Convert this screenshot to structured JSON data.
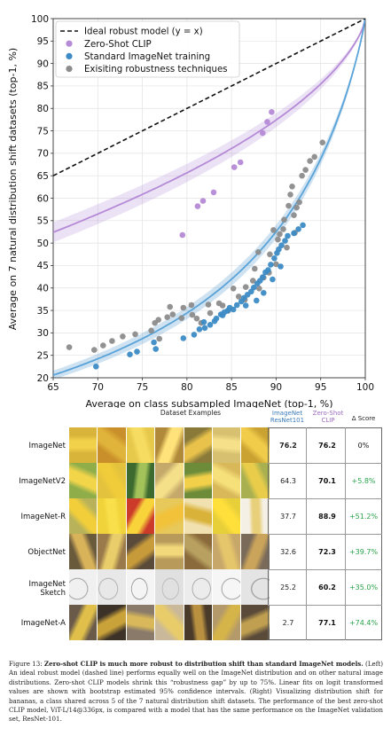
{
  "chart_data": {
    "type": "scatter",
    "title": "",
    "xlabel": "Average on class subsampled ImageNet (top-1, %)",
    "ylabel": "Average on 7 natural distribution shift datasets (top-1, %)",
    "xlim": [
      65,
      100
    ],
    "ylim": [
      20,
      100
    ],
    "xticks": [
      "65",
      "70",
      "75",
      "80",
      "85",
      "90",
      "95",
      "100"
    ],
    "yticks": [
      "20",
      "25",
      "30",
      "35",
      "40",
      "45",
      "50",
      "55",
      "60",
      "65",
      "70",
      "75",
      "80",
      "85",
      "90",
      "95",
      "100"
    ],
    "grid": true,
    "legend_position": "top-left",
    "legend": [
      {
        "label": "Ideal robust model (y = x)",
        "kind": "dashed-line",
        "color": "#111111"
      },
      {
        "label": "Zero-Shot CLIP",
        "kind": "point",
        "color": "#b58ad6"
      },
      {
        "label": "Standard ImageNet training",
        "kind": "point",
        "color": "#3d8bc6"
      },
      {
        "label": "Exisiting robustness techniques",
        "kind": "point",
        "color": "#8c8c8c"
      }
    ],
    "series": [
      {
        "name": "Zero-Shot CLIP",
        "color": "#b58ad6",
        "points": [
          [
            79.5,
            51.8
          ],
          [
            81.2,
            58.2
          ],
          [
            81.8,
            59.4
          ],
          [
            83.0,
            61.3
          ],
          [
            85.3,
            66.9
          ],
          [
            86.0,
            68.0
          ],
          [
            88.5,
            74.5
          ],
          [
            89.0,
            77.0
          ],
          [
            89.5,
            79.2
          ]
        ]
      },
      {
        "name": "Standard ImageNet training",
        "color": "#3d8bc6",
        "points": [
          [
            69.8,
            22.5
          ],
          [
            73.6,
            25.2
          ],
          [
            74.4,
            25.8
          ],
          [
            76.5,
            26.4
          ],
          [
            76.3,
            27.9
          ],
          [
            79.6,
            28.8
          ],
          [
            80.8,
            29.6
          ],
          [
            81.4,
            30.8
          ],
          [
            82.0,
            31.1
          ],
          [
            82.6,
            31.8
          ],
          [
            83.1,
            32.6
          ],
          [
            83.3,
            33.2
          ],
          [
            83.8,
            34.1
          ],
          [
            84.2,
            34.6
          ],
          [
            84.6,
            35.0
          ],
          [
            84.8,
            35.6
          ],
          [
            85.2,
            35.2
          ],
          [
            85.6,
            36.2
          ],
          [
            86.1,
            37.0
          ],
          [
            86.4,
            37.8
          ],
          [
            86.8,
            38.5
          ],
          [
            87.2,
            39.2
          ],
          [
            87.5,
            40.1
          ],
          [
            87.9,
            41.0
          ],
          [
            88.2,
            41.6
          ],
          [
            88.5,
            42.4
          ],
          [
            88.8,
            43.5
          ],
          [
            89.1,
            44.0
          ],
          [
            89.4,
            45.2
          ],
          [
            89.8,
            46.6
          ],
          [
            90.1,
            47.8
          ],
          [
            90.3,
            48.6
          ],
          [
            90.6,
            49.5
          ],
          [
            91.0,
            50.5
          ],
          [
            91.3,
            51.6
          ],
          [
            92.0,
            52.2
          ],
          [
            92.5,
            53.1
          ],
          [
            93.0,
            54.0
          ],
          [
            87.8,
            37.2
          ],
          [
            88.6,
            38.9
          ],
          [
            86.6,
            36.1
          ],
          [
            89.6,
            41.9
          ],
          [
            90.5,
            44.8
          ],
          [
            81.9,
            32.4
          ],
          [
            84.0,
            33.9
          ]
        ]
      },
      {
        "name": "Exisiting robustness techniques",
        "color": "#8c8c8c",
        "points": [
          [
            66.8,
            26.8
          ],
          [
            69.6,
            26.2
          ],
          [
            70.6,
            27.2
          ],
          [
            71.6,
            28.2
          ],
          [
            72.8,
            29.2
          ],
          [
            74.2,
            29.7
          ],
          [
            76.0,
            30.5
          ],
          [
            76.4,
            32.2
          ],
          [
            76.8,
            32.9
          ],
          [
            77.8,
            33.5
          ],
          [
            78.1,
            35.8
          ],
          [
            78.4,
            34.1
          ],
          [
            79.4,
            33.3
          ],
          [
            79.6,
            35.6
          ],
          [
            80.5,
            36.2
          ],
          [
            80.6,
            34.0
          ],
          [
            81.1,
            33.2
          ],
          [
            81.6,
            32.2
          ],
          [
            82.4,
            36.3
          ],
          [
            82.6,
            34.4
          ],
          [
            83.6,
            36.6
          ],
          [
            84.0,
            36.1
          ],
          [
            84.6,
            34.9
          ],
          [
            85.2,
            39.9
          ],
          [
            85.8,
            38.1
          ],
          [
            86.5,
            37.4
          ],
          [
            86.6,
            40.2
          ],
          [
            87.4,
            41.6
          ],
          [
            87.6,
            44.3
          ],
          [
            88.1,
            39.9
          ],
          [
            88.6,
            42.3
          ],
          [
            89.2,
            43.4
          ],
          [
            89.3,
            47.5
          ],
          [
            90.2,
            50.8
          ],
          [
            90.4,
            52.0
          ],
          [
            90.8,
            53.1
          ],
          [
            90.9,
            55.2
          ],
          [
            91.4,
            58.3
          ],
          [
            91.6,
            60.8
          ],
          [
            91.8,
            62.6
          ],
          [
            92.0,
            56.2
          ],
          [
            92.3,
            57.9
          ],
          [
            92.6,
            59.1
          ],
          [
            92.9,
            65.0
          ],
          [
            93.3,
            66.3
          ],
          [
            93.8,
            68.3
          ],
          [
            94.3,
            69.2
          ],
          [
            95.2,
            72.4
          ],
          [
            76.9,
            28.7
          ],
          [
            88.0,
            48.0
          ],
          [
            90.0,
            45.3
          ],
          [
            91.2,
            49.0
          ],
          [
            89.7,
            52.9
          ],
          [
            92.1,
            52.3
          ]
        ]
      }
    ]
  },
  "table": {
    "header_dataset": "Dataset Examples",
    "header_resnet": [
      "ImageNet",
      "ResNet101"
    ],
    "header_clip": [
      "Zero-Shot",
      "CLIP"
    ],
    "header_delta": "Δ Score",
    "rows": [
      {
        "name": [
          "ImageNet"
        ],
        "resnet": "76.2",
        "clip": "76.2",
        "delta": "0%",
        "positive": false
      },
      {
        "name": [
          "ImageNetV2"
        ],
        "resnet": "64.3",
        "clip": "70.1",
        "delta": "+5.8%",
        "positive": true
      },
      {
        "name": [
          "ImageNet-R"
        ],
        "resnet": "37.7",
        "clip": "88.9",
        "delta": "+51.2%",
        "positive": true
      },
      {
        "name": [
          "ObjectNet"
        ],
        "resnet": "32.6",
        "clip": "72.3",
        "delta": "+39.7%",
        "positive": true
      },
      {
        "name": [
          "ImageNet",
          "Sketch"
        ],
        "resnet": "25.2",
        "clip": "60.2",
        "delta": "+35.0%",
        "positive": true
      },
      {
        "name": [
          "ImageNet-A"
        ],
        "resnet": "2.7",
        "clip": "77.1",
        "delta": "+74.4%",
        "positive": true
      }
    ]
  },
  "caption": {
    "lead": "Figure 13: ",
    "bold": "Zero-shot CLIP is much more robust to distribution shift than standard ImageNet models.",
    "body": " (Left) An ideal robust model (dashed line) performs equally well on the ImageNet distribution and on other natural image distributions. Zero-shot CLIP models shrink this “robustness gap” by up to 75%. Linear fits on logit transformed values are shown with bootstrap estimated 95% confidence intervals. (Right) Visualizing distribution shift for bananas, a class shared across 5 of the 7 natural distribution shift datasets. The performance of the best zero-shot CLIP model, ViT-L/14@336px, is compared with a model that has the same performance on the ImageNet validation set, ResNet-101."
  }
}
